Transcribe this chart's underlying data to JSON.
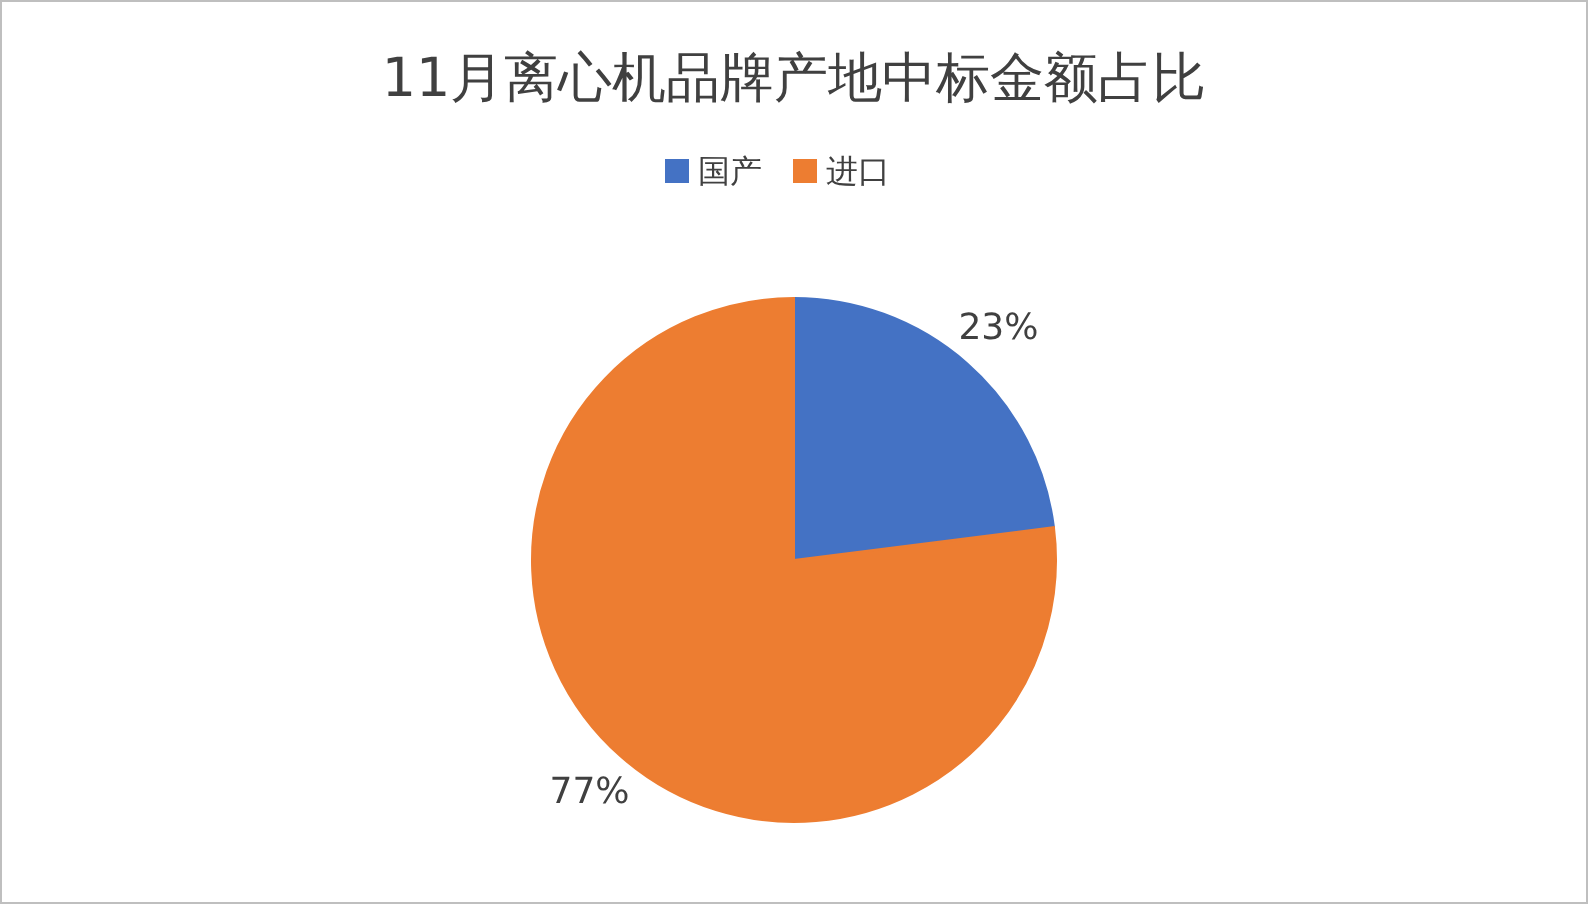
{
  "chart_data": {
    "type": "pie",
    "title": "11月离心机品牌产地中标金额占比",
    "categories": [
      "国产",
      "进口"
    ],
    "values": [
      23,
      77
    ],
    "colors": [
      "#4472c4",
      "#ed7d31"
    ],
    "value_labels": [
      "23%",
      "77%"
    ],
    "legend": "top"
  }
}
